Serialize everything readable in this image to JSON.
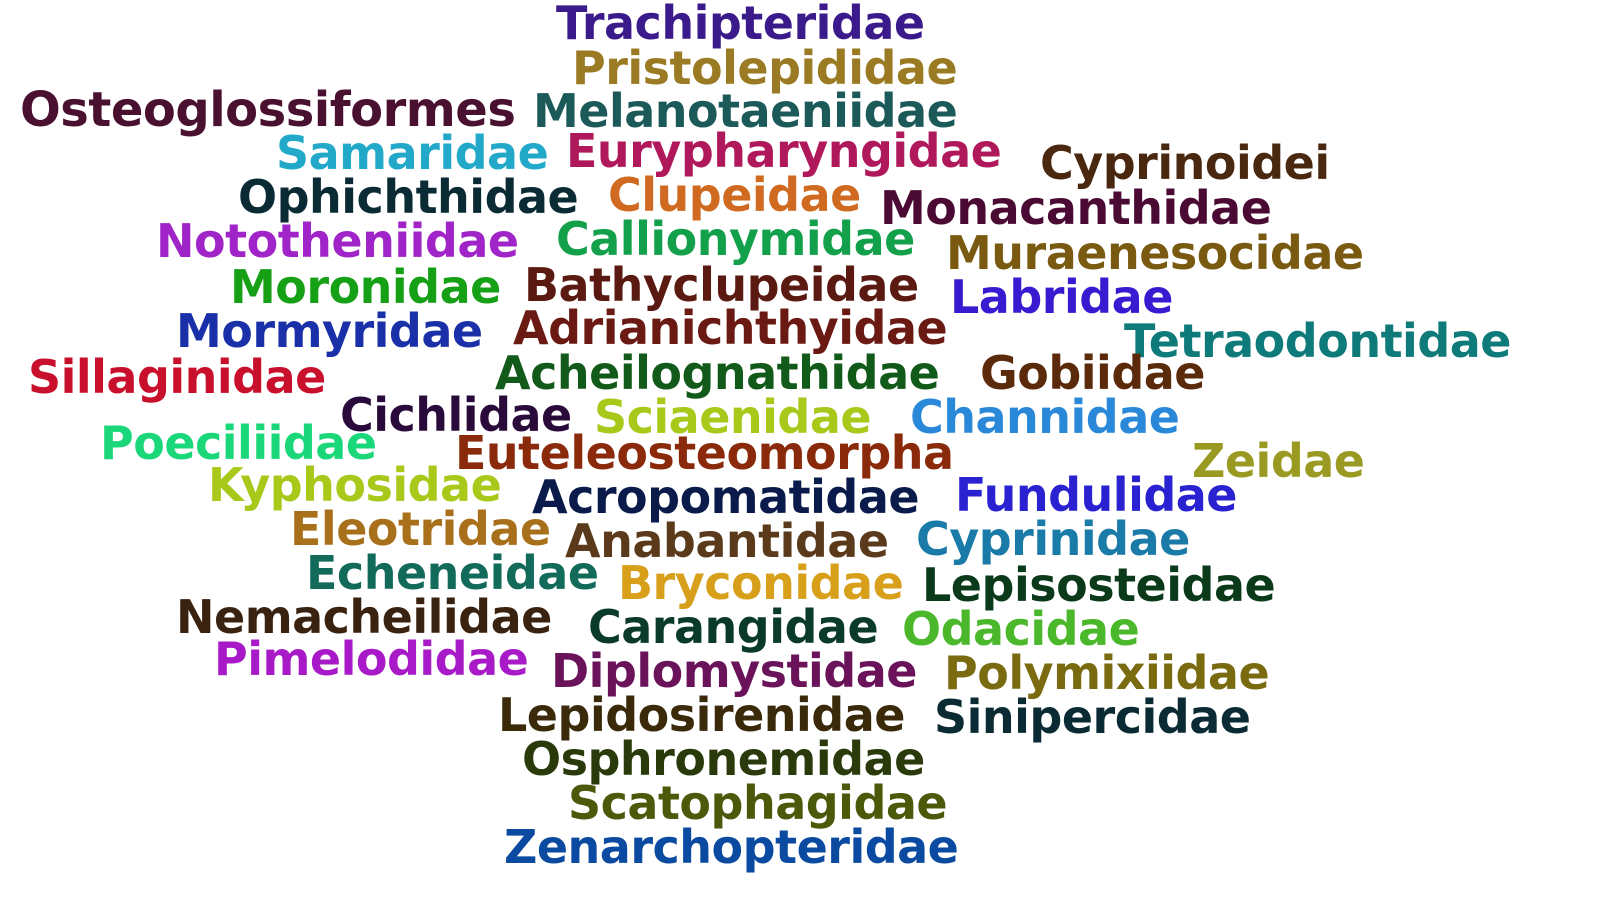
{
  "words": [
    {
      "text": "Trachipteridae",
      "color": "#3b1a8c"
    },
    {
      "text": "Pristolepididae",
      "color": "#9a7a22"
    },
    {
      "text": "Osteoglossiformes",
      "color": "#4a1030"
    },
    {
      "text": "Melanotaeniidae",
      "color": "#1c5a5a"
    },
    {
      "text": "Samaridae",
      "color": "#22a8c8"
    },
    {
      "text": "Eurypharyngidae",
      "color": "#b0185c"
    },
    {
      "text": "Cyprinoidei",
      "color": "#4a2810"
    },
    {
      "text": "Ophichthidae",
      "color": "#0a2a34"
    },
    {
      "text": "Clupeidae",
      "color": "#d06a20"
    },
    {
      "text": "Monacanthidae",
      "color": "#4a0a34"
    },
    {
      "text": "Nototheniidae",
      "color": "#a024c8"
    },
    {
      "text": "Callionymidae",
      "color": "#12a04a"
    },
    {
      "text": "Muraenesocidae",
      "color": "#7a5a10"
    },
    {
      "text": "Moronidae",
      "color": "#16a016"
    },
    {
      "text": "Bathyclupeidae",
      "color": "#5a1a12"
    },
    {
      "text": "Labridae",
      "color": "#3a1ad0"
    },
    {
      "text": "Mormyridae",
      "color": "#1a30a8"
    },
    {
      "text": "Adrianichthyidae",
      "color": "#6a1a12"
    },
    {
      "text": "Tetraodontidae",
      "color": "#0e7a7a"
    },
    {
      "text": "Sillaginidae",
      "color": "#c8102c"
    },
    {
      "text": "Acheilognathidae",
      "color": "#125a1a"
    },
    {
      "text": "Gobiidae",
      "color": "#5a2a0a"
    },
    {
      "text": "Cichlidae",
      "color": "#2a0a3a"
    },
    {
      "text": "Sciaenidae",
      "color": "#a8c81a"
    },
    {
      "text": "Channidae",
      "color": "#2a88d8"
    },
    {
      "text": "Poeciliidae",
      "color": "#1ad87a"
    },
    {
      "text": "Euteleosteomorpha",
      "color": "#8a2a0a"
    },
    {
      "text": "Zeidae",
      "color": "#9a9a22"
    },
    {
      "text": "Kyphosidae",
      "color": "#a8c81a"
    },
    {
      "text": "Acropomatidae",
      "color": "#0a1a4a"
    },
    {
      "text": "Fundulidae",
      "color": "#2a22d0"
    },
    {
      "text": "Eleotridae",
      "color": "#a8701a"
    },
    {
      "text": "Anabantidae",
      "color": "#5a3a1a"
    },
    {
      "text": "Cyprinidae",
      "color": "#1a7aa8"
    },
    {
      "text": "Echeneidae",
      "color": "#126a5a"
    },
    {
      "text": "Bryconidae",
      "color": "#d8a01a"
    },
    {
      "text": "Lepisosteidae",
      "color": "#0a3a1a"
    },
    {
      "text": "Nemacheilidae",
      "color": "#3a2210"
    },
    {
      "text": "Carangidae",
      "color": "#0a3a2a"
    },
    {
      "text": "Odacidae",
      "color": "#4ab82a"
    },
    {
      "text": "Pimelodidae",
      "color": "#a81ac8"
    },
    {
      "text": "Diplomystidae",
      "color": "#6a125a"
    },
    {
      "text": "Polymixiidae",
      "color": "#7a6a10"
    },
    {
      "text": "Lepidosirenidae",
      "color": "#3a2a0a"
    },
    {
      "text": "Sinipercidae",
      "color": "#0a2a34"
    },
    {
      "text": "Osphronemidae",
      "color": "#2a3a0a"
    },
    {
      "text": "Scatophagidae",
      "color": "#4a5a0a"
    },
    {
      "text": "Zenarchopteridae",
      "color": "#0a4aa0"
    }
  ]
}
